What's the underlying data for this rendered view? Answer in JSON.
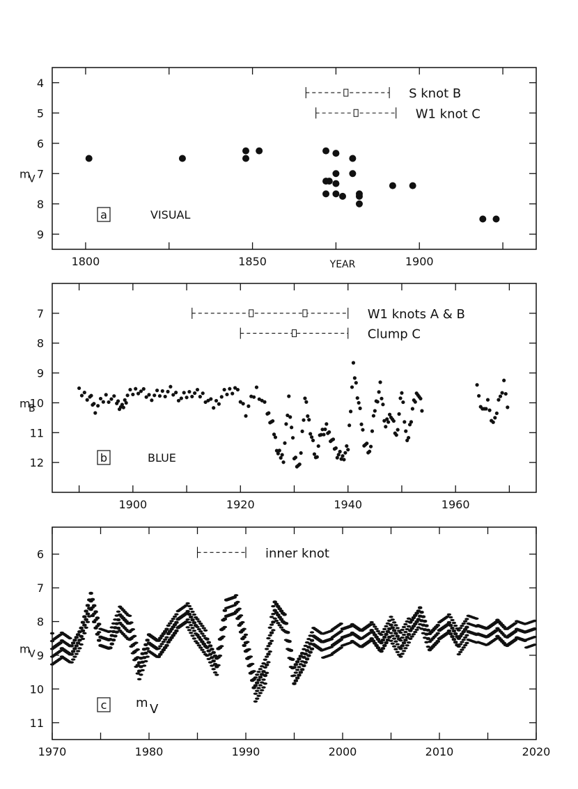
{
  "chart_data": [
    {
      "type": "scatter",
      "panel_letter": "a",
      "panel_label": "VISUAL",
      "xlabel": "YEAR",
      "ylabel_main": "m",
      "ylabel_sub": "V",
      "xlim": [
        1790,
        1935
      ],
      "ylim": [
        9.5,
        3.5
      ],
      "y_inverted": true,
      "xticks": [
        1800,
        1850,
        1900
      ],
      "xtick_labels": [
        "1800",
        "1850",
        "1900"
      ],
      "xminor": [
        1800,
        1825,
        1850,
        1875,
        1900,
        1925
      ],
      "yticks": [
        4,
        5,
        6,
        7,
        8,
        9
      ],
      "ytick_labels": [
        "4",
        "5",
        "6",
        "7",
        "8",
        "9"
      ],
      "points": [
        {
          "x": 1801,
          "y": 6.5
        },
        {
          "x": 1829,
          "y": 6.5
        },
        {
          "x": 1848,
          "y": 6.25
        },
        {
          "x": 1848,
          "y": 6.5
        },
        {
          "x": 1852,
          "y": 6.25
        },
        {
          "x": 1872,
          "y": 6.25
        },
        {
          "x": 1872,
          "y": 7.25
        },
        {
          "x": 1872,
          "y": 7.67
        },
        {
          "x": 1873,
          "y": 7.25
        },
        {
          "x": 1875,
          "y": 6.33
        },
        {
          "x": 1875,
          "y": 7.0
        },
        {
          "x": 1875,
          "y": 7.33
        },
        {
          "x": 1875,
          "y": 7.67
        },
        {
          "x": 1877,
          "y": 7.75
        },
        {
          "x": 1880,
          "y": 6.5
        },
        {
          "x": 1880,
          "y": 7.0
        },
        {
          "x": 1882,
          "y": 7.67
        },
        {
          "x": 1882,
          "y": 7.75
        },
        {
          "x": 1882,
          "y": 8.0
        },
        {
          "x": 1892,
          "y": 7.4
        },
        {
          "x": 1898,
          "y": 7.4
        },
        {
          "x": 1919,
          "y": 8.5
        },
        {
          "x": 1923,
          "y": 8.5
        }
      ],
      "intervals": [
        {
          "label": "S  knot  B",
          "x_start": 1866,
          "x_end": 1891,
          "y": 4.33,
          "markers": [
            1878
          ]
        },
        {
          "label": "W1  knot  C",
          "x_start": 1869,
          "x_end": 1893,
          "y": 5.0,
          "markers": [
            1881
          ]
        }
      ]
    },
    {
      "type": "scatter",
      "panel_letter": "b",
      "panel_label": "BLUE",
      "ylabel_main": "m",
      "ylabel_sub": "B",
      "xlim": [
        1885,
        1975
      ],
      "ylim": [
        13.0,
        6.0
      ],
      "y_inverted": true,
      "xticks": [
        1900,
        1920,
        1940,
        1960
      ],
      "xtick_labels": [
        "1900",
        "1920",
        "1940",
        "1960"
      ],
      "xminor": [
        1890,
        1900,
        1910,
        1920,
        1930,
        1940,
        1950,
        1960,
        1970
      ],
      "yticks": [
        7,
        8,
        9,
        10,
        11,
        12
      ],
      "ytick_labels": [
        "7",
        "8",
        "9",
        "10",
        "11",
        "12"
      ],
      "segments": [
        [
          1890,
          9.65
        ],
        [
          1892,
          9.8
        ],
        [
          1893,
          10.2
        ],
        [
          1895,
          9.8
        ],
        [
          1897,
          9.95
        ],
        [
          1898,
          10.2
        ],
        [
          1899,
          9.75
        ],
        [
          1901,
          9.55
        ],
        [
          1903,
          9.8
        ],
        [
          1905,
          9.7
        ],
        [
          1907,
          9.6
        ],
        [
          1909,
          9.85
        ],
        [
          1911,
          9.65
        ],
        [
          1913,
          9.75
        ],
        [
          1915,
          10.1
        ],
        [
          1917,
          9.7
        ],
        [
          1919,
          9.5
        ],
        [
          1921,
          10.3
        ],
        [
          1923,
          9.55
        ],
        [
          1925,
          10.3
        ],
        [
          1926,
          10.75
        ],
        [
          1927,
          11.7
        ],
        [
          1928,
          11.85
        ],
        [
          1929,
          9.85
        ],
        [
          1930,
          11.8
        ],
        [
          1931,
          12.2
        ],
        [
          1932,
          9.85
        ],
        [
          1933,
          10.9
        ],
        [
          1934,
          11.9
        ],
        [
          1935,
          11.0
        ],
        [
          1936,
          10.85
        ],
        [
          1937,
          11.25
        ],
        [
          1938,
          11.7
        ],
        [
          1939,
          11.85
        ],
        [
          1940,
          11.5
        ],
        [
          1941,
          8.8
        ],
        [
          1942,
          10.0
        ],
        [
          1943,
          11.3
        ],
        [
          1944,
          11.7
        ],
        [
          1945,
          10.2
        ],
        [
          1946,
          9.45
        ],
        [
          1947,
          10.8
        ],
        [
          1948,
          10.35
        ],
        [
          1949,
          11.15
        ],
        [
          1950,
          9.6
        ],
        [
          1951,
          11.4
        ],
        [
          1952,
          10.2
        ],
        [
          1953,
          9.6
        ],
        [
          1954,
          10.4
        ]
      ],
      "segments2": [
        [
          1964,
          9.6
        ],
        [
          1965,
          10.4
        ],
        [
          1966,
          10.1
        ],
        [
          1967,
          10.85
        ],
        [
          1968,
          10.1
        ],
        [
          1969,
          9.45
        ],
        [
          1970,
          10.5
        ]
      ],
      "intervals": [
        {
          "label": "W1  knots  A & B",
          "x_start": 1911,
          "x_end": 1940,
          "y": 7.0,
          "markers": [
            1922,
            1932
          ]
        },
        {
          "label": "Clump  C",
          "x_start": 1920,
          "x_end": 1940,
          "y": 7.67,
          "markers": [
            1930
          ]
        }
      ]
    },
    {
      "type": "scatter",
      "panel_letter": "c",
      "panel_label_main": "m",
      "panel_label_sub": "V",
      "ylabel_main": "m",
      "ylabel_sub": "V",
      "xlim": [
        1970,
        2020
      ],
      "ylim": [
        11.5,
        5.2
      ],
      "y_inverted": true,
      "xticks": [
        1970,
        1980,
        1990,
        2000,
        2010,
        2020
      ],
      "xtick_labels": [
        "1970",
        "1980",
        "1990",
        "2000",
        "2010",
        "2020"
      ],
      "xminor": [
        1970,
        1975,
        1980,
        1985,
        1990,
        1995,
        2000,
        2005,
        2010,
        2015,
        2020
      ],
      "yticks": [
        6,
        7,
        8,
        9,
        10,
        11
      ],
      "ytick_labels": [
        "6",
        "7",
        "8",
        "9",
        "10",
        "11"
      ],
      "curve": [
        [
          1970,
          8.9
        ],
        [
          1971,
          8.7
        ],
        [
          1972,
          8.9
        ],
        [
          1973,
          8.4
        ],
        [
          1974,
          7.4
        ],
        [
          1975,
          8.5
        ],
        [
          1976,
          8.6
        ],
        [
          1977,
          7.9
        ],
        [
          1978,
          8.2
        ],
        [
          1979,
          9.4
        ],
        [
          1980,
          8.6
        ],
        [
          1981,
          8.8
        ],
        [
          1982,
          8.4
        ],
        [
          1983,
          8.0
        ],
        [
          1984,
          7.8
        ],
        [
          1985,
          8.3
        ],
        [
          1986,
          8.7
        ],
        [
          1987,
          9.3
        ],
        [
          1988,
          7.6
        ],
        [
          1989,
          7.5
        ],
        [
          1990,
          8.7
        ],
        [
          1991,
          10.0
        ],
        [
          1992,
          9.5
        ],
        [
          1993,
          7.6
        ],
        [
          1994,
          8.0
        ],
        [
          1995,
          9.6
        ],
        [
          1996,
          9.1
        ],
        [
          1997,
          8.5
        ],
        [
          1998,
          8.7
        ],
        [
          1999,
          8.6
        ],
        [
          2000,
          8.4
        ],
        [
          2001,
          8.3
        ],
        [
          2002,
          8.5
        ],
        [
          2003,
          8.3
        ],
        [
          2004,
          8.7
        ],
        [
          2005,
          8.2
        ],
        [
          2006,
          8.7
        ],
        [
          2007,
          8.2
        ],
        [
          2008,
          7.8
        ],
        [
          2009,
          8.6
        ],
        [
          2010,
          8.3
        ],
        [
          2011,
          8.1
        ],
        [
          2012,
          8.6
        ],
        [
          2013,
          8.2
        ],
        [
          2014,
          8.3
        ],
        [
          2015,
          8.4
        ],
        [
          2016,
          8.2
        ],
        [
          2017,
          8.5
        ],
        [
          2018,
          8.3
        ],
        [
          2019,
          8.4
        ],
        [
          2020,
          8.3
        ]
      ],
      "intervals": [
        {
          "label": "inner  knot",
          "x_start": 1985,
          "x_end": 1990,
          "y": 5.95,
          "markers": []
        }
      ]
    }
  ]
}
